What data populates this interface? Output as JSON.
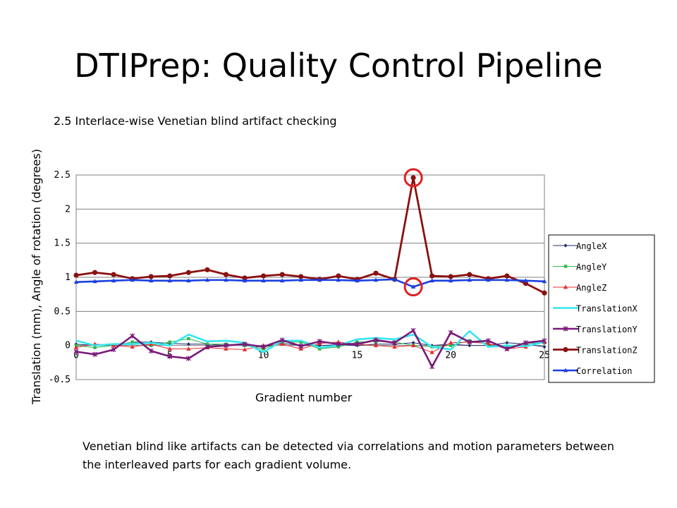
{
  "slide": {
    "title": "DTIPrep: Quality Control Pipeline",
    "subtitle": "2.5 Interlace-wise Venetian blind artifact checking",
    "caption": "Venetian blind like artifacts can be detected via correlations and motion parameters between the interleaved parts for each gradient volume."
  },
  "chart_data": {
    "type": "line",
    "xlabel": "Gradient number",
    "ylabel": "Translation (mm), Angle of rotation (degrees)",
    "xlim": [
      0,
      25
    ],
    "ylim": [
      -0.5,
      2.5
    ],
    "xticks": [
      0,
      5,
      10,
      15,
      20,
      25
    ],
    "yticks": [
      -0.5,
      0,
      0.5,
      1,
      1.5,
      2,
      2.5
    ],
    "ytick_labels": [
      "-0.5",
      "0",
      "0.5",
      "1",
      "1.5",
      "2",
      "2.5"
    ],
    "grid": "horizontal",
    "legend_position": "right",
    "x": [
      0,
      1,
      2,
      3,
      4,
      5,
      6,
      7,
      8,
      9,
      10,
      11,
      12,
      13,
      14,
      15,
      16,
      17,
      18,
      19,
      20,
      21,
      22,
      23,
      24,
      25
    ],
    "series": [
      {
        "name": "AngleX",
        "color": "#1f2d6b",
        "marker": "diamond",
        "values": [
          0.02,
          0.0,
          0.0,
          0.05,
          0.05,
          0.03,
          0.02,
          0.02,
          0.0,
          0.02,
          -0.02,
          0.03,
          0.0,
          0.0,
          0.01,
          0.0,
          0.02,
          0.02,
          0.04,
          0.0,
          0.02,
          0.0,
          0.0,
          0.04,
          0.02,
          -0.02
        ]
      },
      {
        "name": "AngleY",
        "color": "#2db84a",
        "marker": "square",
        "values": [
          0.0,
          -0.03,
          0.0,
          0.05,
          0.0,
          0.05,
          0.1,
          0.02,
          0.02,
          0.0,
          -0.05,
          0.05,
          0.05,
          -0.05,
          -0.02,
          0.05,
          0.06,
          0.05,
          0.0,
          -0.02,
          0.0,
          0.07,
          0.02,
          -0.03,
          0.03,
          0.04
        ]
      },
      {
        "name": "AngleZ",
        "color": "#e03030",
        "marker": "triangle",
        "values": [
          -0.03,
          0.02,
          0.0,
          -0.02,
          0.02,
          -0.05,
          -0.05,
          -0.03,
          -0.05,
          -0.06,
          0.0,
          0.02,
          -0.05,
          0.03,
          0.05,
          0.02,
          0.0,
          -0.02,
          0.0,
          -0.1,
          0.04,
          0.05,
          0.03,
          -0.05,
          -0.02,
          0.05
        ]
      },
      {
        "name": "TranslationX",
        "color": "#33e6f0",
        "marker": "line",
        "values": [
          0.07,
          0.0,
          0.02,
          0.02,
          0.04,
          0.0,
          0.16,
          0.06,
          0.07,
          0.04,
          -0.1,
          0.07,
          0.07,
          -0.03,
          0.0,
          0.09,
          0.11,
          0.09,
          0.16,
          -0.02,
          -0.06,
          0.21,
          -0.02,
          0.0,
          -0.01,
          0.05
        ]
      },
      {
        "name": "TranslationY",
        "color": "#7a1a7a",
        "marker": "x",
        "values": [
          -0.09,
          -0.13,
          -0.06,
          0.14,
          -0.08,
          -0.16,
          -0.19,
          -0.02,
          0.0,
          0.02,
          -0.02,
          0.08,
          -0.01,
          0.06,
          0.02,
          0.02,
          0.08,
          0.04,
          0.22,
          -0.31,
          0.19,
          0.05,
          0.07,
          -0.05,
          0.04,
          0.07
        ]
      },
      {
        "name": "TranslationZ",
        "color": "#8b1010",
        "marker": "circle",
        "values": [
          1.03,
          1.07,
          1.04,
          0.98,
          1.01,
          1.02,
          1.07,
          1.11,
          1.04,
          0.99,
          1.02,
          1.04,
          1.01,
          0.97,
          1.02,
          0.97,
          1.06,
          0.97,
          2.46,
          1.02,
          1.01,
          1.04,
          0.98,
          1.02,
          0.91,
          0.77
        ]
      },
      {
        "name": "Correlation",
        "color": "#1a3fe0",
        "marker": "triangle",
        "values": [
          0.93,
          0.94,
          0.95,
          0.96,
          0.95,
          0.95,
          0.95,
          0.96,
          0.96,
          0.95,
          0.95,
          0.95,
          0.96,
          0.96,
          0.96,
          0.95,
          0.96,
          0.97,
          0.86,
          0.95,
          0.95,
          0.96,
          0.96,
          0.96,
          0.95,
          0.94
        ]
      }
    ],
    "highlight_color": "#e02020"
  }
}
